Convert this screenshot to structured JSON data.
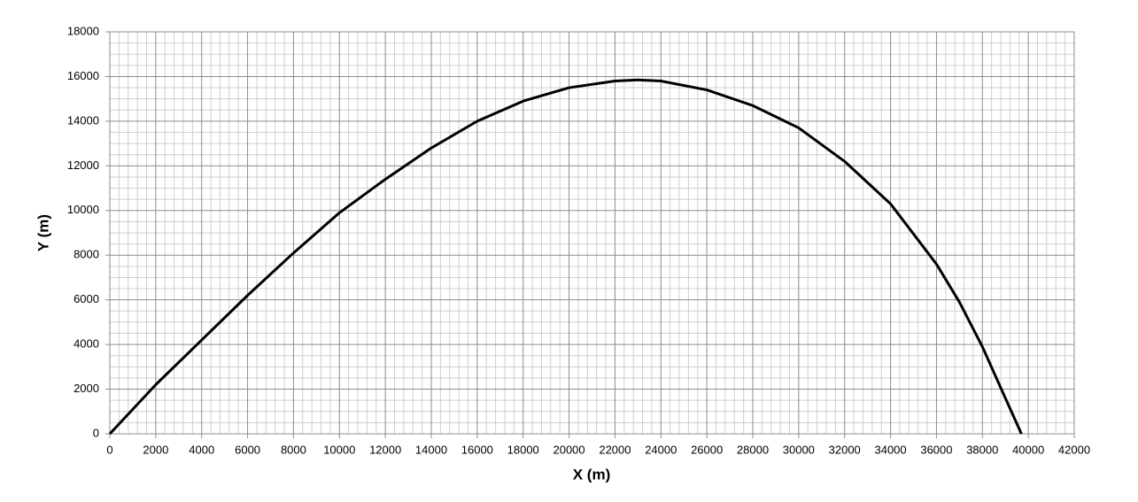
{
  "chart_data": {
    "type": "line",
    "x_label": "X (m)",
    "y_label": "Y (m)",
    "x": [
      0,
      2000,
      4000,
      6000,
      8000,
      10000,
      12000,
      14000,
      16000,
      18000,
      20000,
      22000,
      23000,
      24000,
      26000,
      28000,
      30000,
      32000,
      34000,
      36000,
      37000,
      38000,
      39000,
      39700
    ],
    "series": [
      {
        "color": "#000000",
        "values": [
          0,
          2200,
          4200,
          6200,
          8100,
          9900,
          11400,
          12800,
          14000,
          14900,
          15500,
          15800,
          15850,
          15800,
          15400,
          14700,
          13700,
          12200,
          10300,
          7600,
          5900,
          3900,
          1600,
          0
        ]
      }
    ],
    "xlim": [
      0,
      42000
    ],
    "xticks": [
      0,
      2000,
      4000,
      6000,
      8000,
      10000,
      12000,
      14000,
      16000,
      18000,
      20000,
      22000,
      24000,
      26000,
      28000,
      30000,
      32000,
      34000,
      36000,
      38000,
      40000,
      42000
    ],
    "ylim": [
      0,
      18000
    ],
    "yticks": [
      0,
      2000,
      4000,
      6000,
      8000,
      10000,
      12000,
      14000,
      16000,
      18000
    ],
    "grid": true,
    "minor_grid": true
  }
}
